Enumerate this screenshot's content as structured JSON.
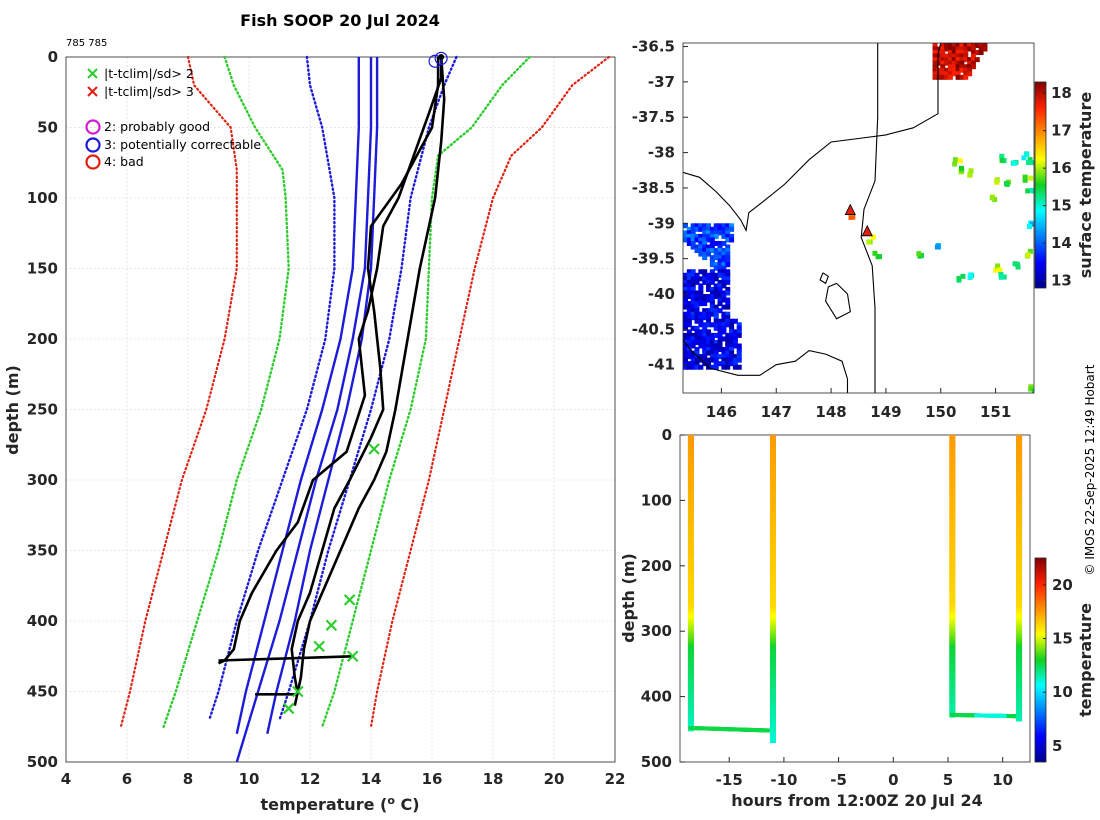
{
  "title": "Fish SOOP 20 Jul 2024",
  "cruise_tag": "785 785",
  "credit": "© IMOS 22-Sep-2025 12:49 Hobart",
  "legend": {
    "cross_green": "|t-tclim|/sd> 2",
    "cross_red": "|t-tclim|/sd> 3",
    "circle_magenta": "2: probably good",
    "circle_blue": "3: potentially correctable",
    "circle_red": "4: bad"
  },
  "colors": {
    "green_limit": "#2ecc2e",
    "red_limit": "#e02010",
    "blue_clim": "#1b1bd9",
    "profile": "#000000",
    "circle_magenta": "#d21ed2"
  },
  "chart_data": [
    {
      "type": "line",
      "name": "profile",
      "xlabel": "temperature (o C)",
      "ylabel": "depth (m)",
      "xlim": [
        4,
        22
      ],
      "ylim": [
        0,
        500
      ],
      "xticks": [
        4,
        6,
        8,
        10,
        12,
        14,
        16,
        18,
        20,
        22
      ],
      "yticks": [
        0,
        50,
        100,
        150,
        200,
        250,
        300,
        350,
        400,
        450,
        500
      ],
      "series": [
        {
          "name": "clim mean",
          "style": "solid-blue",
          "depth": [
            0,
            50,
            100,
            150,
            200,
            250,
            300,
            350,
            400,
            450,
            500
          ],
          "temp": [
            14.0,
            14.0,
            13.9,
            13.8,
            13.4,
            12.9,
            12.2,
            11.6,
            11.0,
            10.3,
            9.6
          ]
        },
        {
          "name": "clim -1sd",
          "style": "solid-blue",
          "depth": [
            0,
            50,
            100,
            150,
            200,
            250,
            300,
            350,
            400,
            450,
            480
          ],
          "temp": [
            13.6,
            13.6,
            13.5,
            13.4,
            13.0,
            12.4,
            11.7,
            11.1,
            10.5,
            9.9,
            9.6
          ]
        },
        {
          "name": "clim +1sd",
          "style": "solid-blue",
          "depth": [
            0,
            50,
            100,
            150,
            200,
            250,
            300,
            350,
            400,
            450,
            480
          ],
          "temp": [
            14.2,
            14.2,
            14.1,
            14.0,
            13.7,
            13.2,
            12.6,
            12.0,
            11.5,
            10.9,
            10.6
          ]
        },
        {
          "name": "clim -2sd",
          "style": "dotted-blue",
          "depth": [
            0,
            20,
            50,
            100,
            150,
            200,
            250,
            300,
            350,
            400,
            450,
            470
          ],
          "temp": [
            11.9,
            12.0,
            12.4,
            12.8,
            12.8,
            12.5,
            11.9,
            11.1,
            10.3,
            9.6,
            9.0,
            8.7
          ]
        },
        {
          "name": "clim +2sd",
          "style": "dotted-blue",
          "depth": [
            0,
            20,
            50,
            100,
            150,
            200,
            250,
            300,
            350,
            400,
            450,
            470
          ],
          "temp": [
            16.8,
            16.4,
            15.9,
            15.3,
            15.0,
            14.6,
            14.0,
            13.3,
            12.6,
            12.0,
            11.3,
            11.0
          ]
        },
        {
          "name": "3sd low",
          "style": "dotted-green",
          "depth": [
            0,
            20,
            50,
            80,
            100,
            150,
            200,
            250,
            300,
            350,
            400,
            450,
            475
          ],
          "temp": [
            9.2,
            9.5,
            10.2,
            11.1,
            11.2,
            11.3,
            11.0,
            10.4,
            9.6,
            9.0,
            8.3,
            7.6,
            7.2
          ]
        },
        {
          "name": "3sd high",
          "style": "dotted-green",
          "depth": [
            0,
            20,
            50,
            70,
            100,
            150,
            200,
            250,
            300,
            350,
            400,
            450,
            475
          ],
          "temp": [
            19.2,
            18.3,
            17.3,
            16.2,
            16.0,
            15.9,
            15.8,
            15.3,
            14.6,
            14.0,
            13.4,
            12.8,
            12.4
          ]
        },
        {
          "name": "4sd low",
          "style": "dotted-red",
          "depth": [
            0,
            20,
            50,
            80,
            100,
            150,
            200,
            250,
            300,
            350,
            400,
            450,
            475
          ],
          "temp": [
            8.0,
            8.2,
            9.4,
            9.6,
            9.6,
            9.6,
            9.2,
            8.6,
            7.8,
            7.2,
            6.6,
            6.1,
            5.8
          ]
        },
        {
          "name": "4sd high",
          "style": "dotted-red",
          "depth": [
            0,
            20,
            50,
            70,
            100,
            150,
            200,
            250,
            300,
            350,
            400,
            450,
            475
          ],
          "temp": [
            21.8,
            20.6,
            19.6,
            18.6,
            18.0,
            17.4,
            16.9,
            16.4,
            15.9,
            15.3,
            14.7,
            14.2,
            14.0
          ]
        },
        {
          "name": "profile A",
          "style": "solid-black",
          "depth": [
            0,
            15,
            40,
            70,
            100,
            120,
            150,
            180,
            200,
            240,
            280,
            300,
            330,
            350,
            380,
            400,
            420,
            428,
            430
          ],
          "temp": [
            16.3,
            16.3,
            15.9,
            15.4,
            14.9,
            14.4,
            14.2,
            13.9,
            13.6,
            13.8,
            13.2,
            12.1,
            11.6,
            10.9,
            10.1,
            9.7,
            9.5,
            9.2,
            9.0
          ]
        },
        {
          "name": "profile A bottom",
          "style": "solid-black",
          "depth": [
            428,
            426,
            425
          ],
          "temp": [
            9.0,
            12.0,
            13.4
          ]
        },
        {
          "name": "profile B",
          "style": "solid-black",
          "depth": [
            0,
            20,
            50,
            90,
            120,
            150,
            180,
            220,
            250,
            270,
            300,
            320,
            350,
            380,
            400,
            420,
            440,
            452
          ],
          "temp": [
            16.2,
            16.2,
            16.0,
            15.0,
            14.0,
            13.9,
            14.1,
            14.3,
            14.4,
            14.0,
            13.3,
            12.8,
            12.4,
            12.0,
            11.6,
            11.4,
            11.5,
            11.6
          ]
        },
        {
          "name": "profile B bottom",
          "style": "solid-black",
          "depth": [
            452,
            452
          ],
          "temp": [
            11.6,
            10.2
          ]
        },
        {
          "name": "profile C",
          "style": "solid-black",
          "depth": [
            0,
            30,
            60,
            100,
            150,
            200,
            250,
            280,
            300,
            320,
            350,
            380,
            400,
            420,
            440,
            460
          ],
          "temp": [
            16.3,
            16.4,
            16.3,
            16.1,
            15.6,
            15.2,
            14.8,
            14.5,
            14.1,
            13.6,
            13.0,
            12.4,
            12.0,
            11.8,
            11.7,
            11.5
          ]
        }
      ],
      "flags": [
        {
          "marker": "green-x",
          "temp": 14.1,
          "depth": 278
        },
        {
          "marker": "green-x",
          "temp": 13.3,
          "depth": 385
        },
        {
          "marker": "green-x",
          "temp": 12.7,
          "depth": 403
        },
        {
          "marker": "green-x",
          "temp": 12.3,
          "depth": 418
        },
        {
          "marker": "green-x",
          "temp": 13.4,
          "depth": 425
        },
        {
          "marker": "green-x",
          "temp": 11.6,
          "depth": 450
        },
        {
          "marker": "green-x",
          "temp": 11.3,
          "depth": 462
        },
        {
          "marker": "blue-circle",
          "temp": 16.1,
          "depth": 3
        },
        {
          "marker": "blue-circle",
          "temp": 16.3,
          "depth": 1
        }
      ]
    },
    {
      "type": "heatmap",
      "name": "surface temperature map",
      "xlim": [
        145.3,
        151.7
      ],
      "ylim": [
        -41.4,
        -36.45
      ],
      "xticks": [
        146,
        147,
        148,
        149,
        150,
        151
      ],
      "yticks": [
        -36.5,
        -37,
        -37.5,
        -38,
        -38.5,
        -39,
        -39.5,
        -40,
        -40.5,
        -41
      ],
      "xtick_labels": [
        "146",
        "147",
        "148",
        "149",
        "150",
        "151"
      ],
      "ytick_labels": [
        "-36.5",
        "-37",
        "-37.5",
        "-38",
        "-38.5",
        "-39",
        "-39.5",
        "-40",
        "-40.5",
        "-41"
      ],
      "colorbar": {
        "label": "surface temperature",
        "range": [
          12.8,
          18.3
        ],
        "ticks": [
          13,
          14,
          15,
          16,
          17,
          18
        ]
      },
      "stations": [
        {
          "lon": 148.35,
          "lat": -38.82
        },
        {
          "lon": 148.66,
          "lat": -39.12
        }
      ]
    },
    {
      "type": "scatter",
      "name": "depth vs time",
      "xlabel": "hours from 12:00Z 20 Jul 24",
      "ylabel": "depth (m)",
      "xlim": [
        -19.5,
        12.5
      ],
      "ylim": [
        0,
        500
      ],
      "xticks": [
        -15,
        -10,
        -5,
        0,
        5,
        10
      ],
      "xtick_labels": [
        "-15",
        "-10",
        "-5",
        "0",
        "5",
        "10"
      ],
      "yticks": [
        0,
        100,
        200,
        300,
        400,
        500
      ],
      "colorbar": {
        "label": "temperature",
        "range": [
          3.5,
          22.5
        ],
        "ticks": [
          5,
          10,
          15,
          20
        ]
      },
      "casts": [
        {
          "path": [
            [
              -18.5,
              0
            ],
            [
              -18.5,
              448
            ],
            [
              -11.0,
              452
            ],
            [
              -11.0,
              0
            ]
          ],
          "max_depth": 465
        },
        {
          "path": [
            [
              5.4,
              0
            ],
            [
              5.4,
              428
            ],
            [
              11.5,
              430
            ],
            [
              11.5,
              0
            ]
          ],
          "max_depth": 432
        }
      ]
    }
  ]
}
